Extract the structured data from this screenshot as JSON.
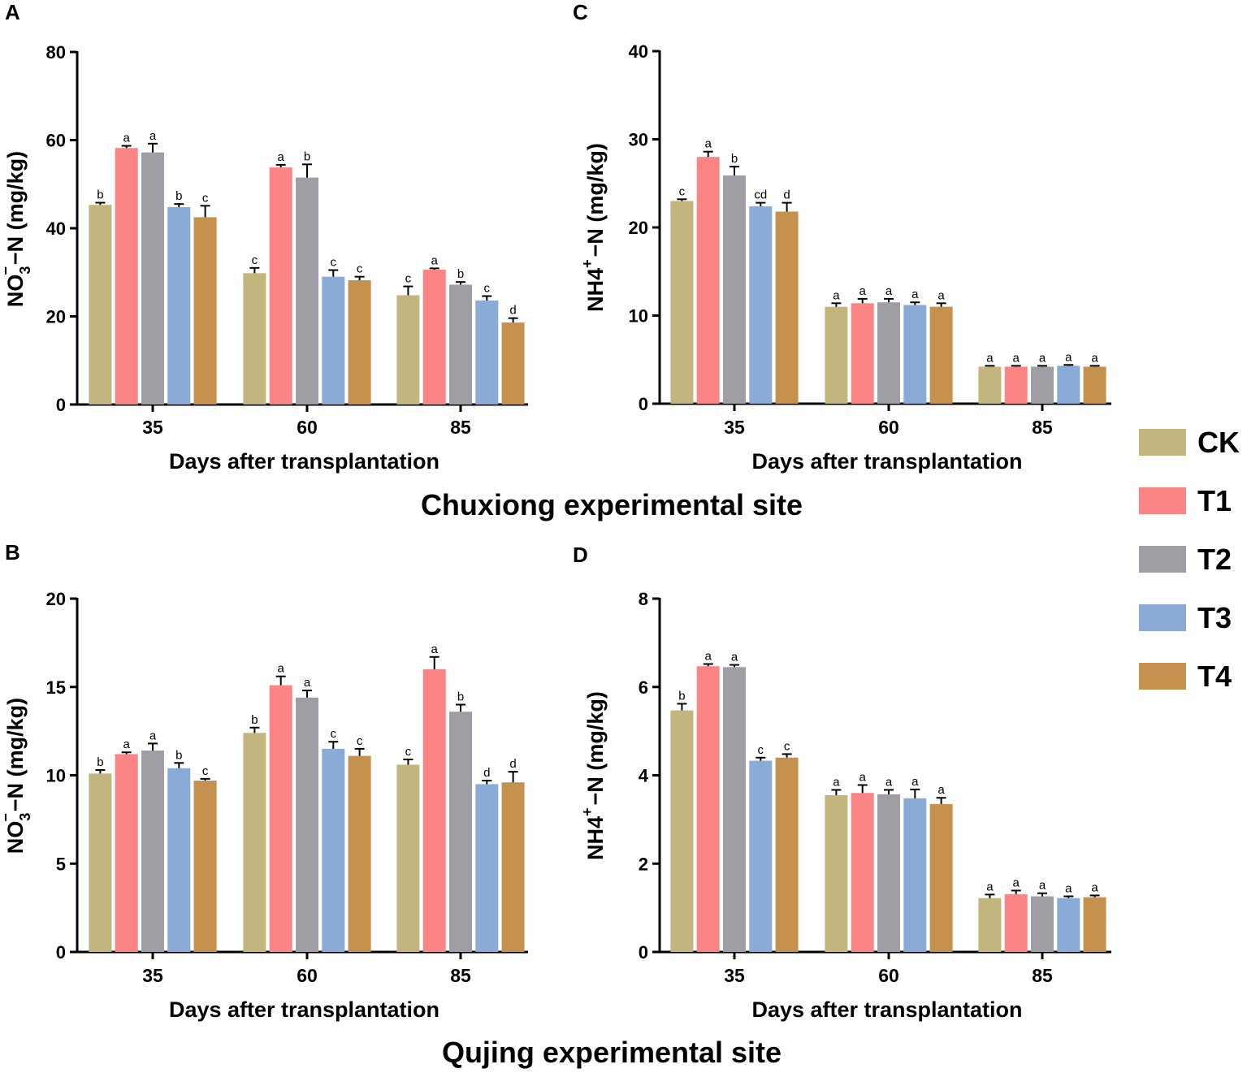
{
  "figure": {
    "site_titles": [
      "Chuxiong experimental site",
      "Qujing experimental site"
    ],
    "legend": [
      {
        "label": "CK",
        "color": "#c2b57d"
      },
      {
        "label": "T1",
        "color": "#fb8485"
      },
      {
        "label": "T2",
        "color": "#9f9ea4"
      },
      {
        "label": "T3",
        "color": "#8aabd6"
      },
      {
        "label": "T4",
        "color": "#c4914e"
      }
    ]
  },
  "chart_data": [
    {
      "panel": "A",
      "type": "bar",
      "site": "Chuxiong experimental site",
      "title": "",
      "xlabel": "Days after transplantation",
      "ylabel": {
        "main": "NO",
        "sub": "3",
        "sup": "−",
        "tail": "−N (mg/kg)"
      },
      "categories": [
        "35",
        "60",
        "85"
      ],
      "ylim": [
        0,
        80
      ],
      "yticks": [
        0,
        20,
        40,
        60,
        80
      ],
      "series": [
        {
          "name": "CK",
          "values": [
            45.3,
            29.8,
            24.8
          ],
          "errors": [
            0.5,
            1.2,
            2.0
          ],
          "letters": [
            "b",
            "c",
            "c"
          ]
        },
        {
          "name": "T1",
          "values": [
            58.2,
            53.8,
            30.6
          ],
          "errors": [
            0.5,
            0.6,
            0.3
          ],
          "letters": [
            "a",
            "a",
            "a"
          ]
        },
        {
          "name": "T2",
          "values": [
            57.2,
            51.5,
            27.2
          ],
          "errors": [
            2.0,
            3.0,
            0.6
          ],
          "letters": [
            "a",
            "b",
            "b"
          ]
        },
        {
          "name": "T3",
          "values": [
            44.8,
            29.0,
            23.6
          ],
          "errors": [
            0.7,
            1.5,
            1.0
          ],
          "letters": [
            "b",
            "c",
            "c"
          ]
        },
        {
          "name": "T4",
          "values": [
            42.5,
            28.2,
            18.6
          ],
          "errors": [
            2.6,
            0.8,
            1.0
          ],
          "letters": [
            "c",
            "c",
            "d"
          ]
        }
      ]
    },
    {
      "panel": "C",
      "type": "bar",
      "site": "Chuxiong experimental site",
      "title": "",
      "xlabel": "Days after transplantation",
      "ylabel": {
        "main": "NH4",
        "sub": "",
        "sup": "+",
        "tail": "−N (mg/kg)"
      },
      "categories": [
        "35",
        "60",
        "85"
      ],
      "ylim": [
        0,
        40
      ],
      "yticks": [
        0,
        10,
        20,
        30,
        40
      ],
      "series": [
        {
          "name": "CK",
          "values": [
            23.0,
            11.0,
            4.2
          ],
          "errors": [
            0.2,
            0.4,
            0.1
          ],
          "letters": [
            "c",
            "a",
            "a"
          ]
        },
        {
          "name": "T1",
          "values": [
            28.0,
            11.4,
            4.2
          ],
          "errors": [
            0.6,
            0.5,
            0.1
          ],
          "letters": [
            "a",
            "a",
            "a"
          ]
        },
        {
          "name": "T2",
          "values": [
            25.9,
            11.5,
            4.2
          ],
          "errors": [
            1.0,
            0.4,
            0.1
          ],
          "letters": [
            "b",
            "a",
            "a"
          ]
        },
        {
          "name": "T3",
          "values": [
            22.4,
            11.2,
            4.3
          ],
          "errors": [
            0.4,
            0.3,
            0.1
          ],
          "letters": [
            "cd",
            "a",
            "a"
          ]
        },
        {
          "name": "T4",
          "values": [
            21.8,
            11.0,
            4.2
          ],
          "errors": [
            1.0,
            0.4,
            0.1
          ],
          "letters": [
            "d",
            "a",
            "a"
          ]
        }
      ]
    },
    {
      "panel": "B",
      "type": "bar",
      "site": "Qujing experimental site",
      "title": "",
      "xlabel": "Days after transplantation",
      "ylabel": {
        "main": "NO",
        "sub": "3",
        "sup": "−",
        "tail": "−N (mg/kg)"
      },
      "categories": [
        "35",
        "60",
        "85"
      ],
      "ylim": [
        0,
        20
      ],
      "yticks": [
        0,
        5,
        10,
        15,
        20
      ],
      "series": [
        {
          "name": "CK",
          "values": [
            10.1,
            12.4,
            10.6
          ],
          "errors": [
            0.2,
            0.3,
            0.3
          ],
          "letters": [
            "b",
            "b",
            "c"
          ]
        },
        {
          "name": "T1",
          "values": [
            11.2,
            15.1,
            16.0
          ],
          "errors": [
            0.1,
            0.5,
            0.7
          ],
          "letters": [
            "a",
            "a",
            "a"
          ]
        },
        {
          "name": "T2",
          "values": [
            11.4,
            14.4,
            13.6
          ],
          "errors": [
            0.4,
            0.4,
            0.4
          ],
          "letters": [
            "a",
            "a",
            "b"
          ]
        },
        {
          "name": "T3",
          "values": [
            10.4,
            11.5,
            9.5
          ],
          "errors": [
            0.3,
            0.4,
            0.2
          ],
          "letters": [
            "b",
            "c",
            "d"
          ]
        },
        {
          "name": "T4",
          "values": [
            9.7,
            11.1,
            9.6
          ],
          "errors": [
            0.1,
            0.4,
            0.6
          ],
          "letters": [
            "c",
            "c",
            "d"
          ]
        }
      ]
    },
    {
      "panel": "D",
      "type": "bar",
      "site": "Qujing experimental site",
      "title": "",
      "xlabel": "Days after transplantation",
      "ylabel": {
        "main": "NH4",
        "sub": "",
        "sup": "+",
        "tail": "−N (mg/kg)"
      },
      "categories": [
        "35",
        "60",
        "85"
      ],
      "ylim": [
        0,
        8
      ],
      "yticks": [
        0,
        2,
        4,
        6,
        8
      ],
      "series": [
        {
          "name": "CK",
          "values": [
            5.47,
            3.55,
            1.22
          ],
          "errors": [
            0.15,
            0.12,
            0.08
          ],
          "letters": [
            "b",
            "a",
            "a"
          ]
        },
        {
          "name": "T1",
          "values": [
            6.47,
            3.6,
            1.31
          ],
          "errors": [
            0.05,
            0.18,
            0.08
          ],
          "letters": [
            "a",
            "a",
            "a"
          ]
        },
        {
          "name": "T2",
          "values": [
            6.45,
            3.57,
            1.26
          ],
          "errors": [
            0.05,
            0.1,
            0.07
          ],
          "letters": [
            "a",
            "a",
            "a"
          ]
        },
        {
          "name": "T3",
          "values": [
            4.33,
            3.48,
            1.22
          ],
          "errors": [
            0.07,
            0.2,
            0.04
          ],
          "letters": [
            "c",
            "a",
            "a"
          ]
        },
        {
          "name": "T4",
          "values": [
            4.4,
            3.35,
            1.24
          ],
          "errors": [
            0.08,
            0.14,
            0.04
          ],
          "letters": [
            "c",
            "a",
            "a"
          ]
        }
      ]
    }
  ]
}
